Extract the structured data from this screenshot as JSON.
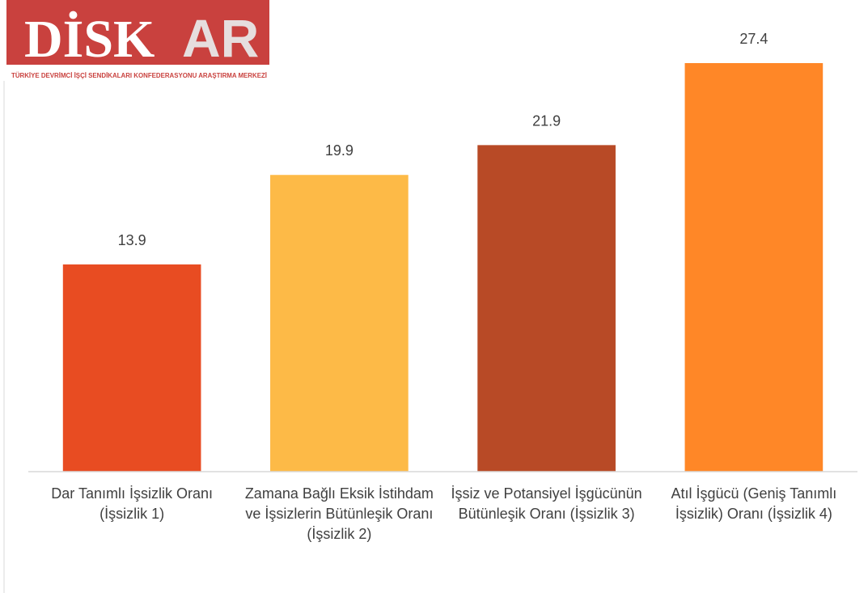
{
  "logo": {
    "main": "DİSK",
    "accent": "AR",
    "subtitle": "TÜRKİYE DEVRİMCİ İŞÇİ SENDİKALARI KONFEDERASYONU ARAŞTIRMA MERKEZİ"
  },
  "chart_data": {
    "type": "bar",
    "categories": [
      "Dar Tanımlı İşsizlik Oranı (İşsizlik 1)",
      "Zamana Bağlı Eksik İstihdam ve İşsizlerin Bütünleşik Oranı (İşsizlik 2)",
      "İşsiz ve Potansiyel İşgücünün Bütünleşik Oranı (İşsizlik 3)",
      "Atıl İşgücü (Geniş Tanımlı İşsizlik) Oranı (İşsizlik 4)"
    ],
    "values": [
      13.9,
      19.9,
      21.9,
      27.4
    ],
    "colors": [
      "#e84c22",
      "#fdba47",
      "#b84a26",
      "#ff8727"
    ]
  }
}
